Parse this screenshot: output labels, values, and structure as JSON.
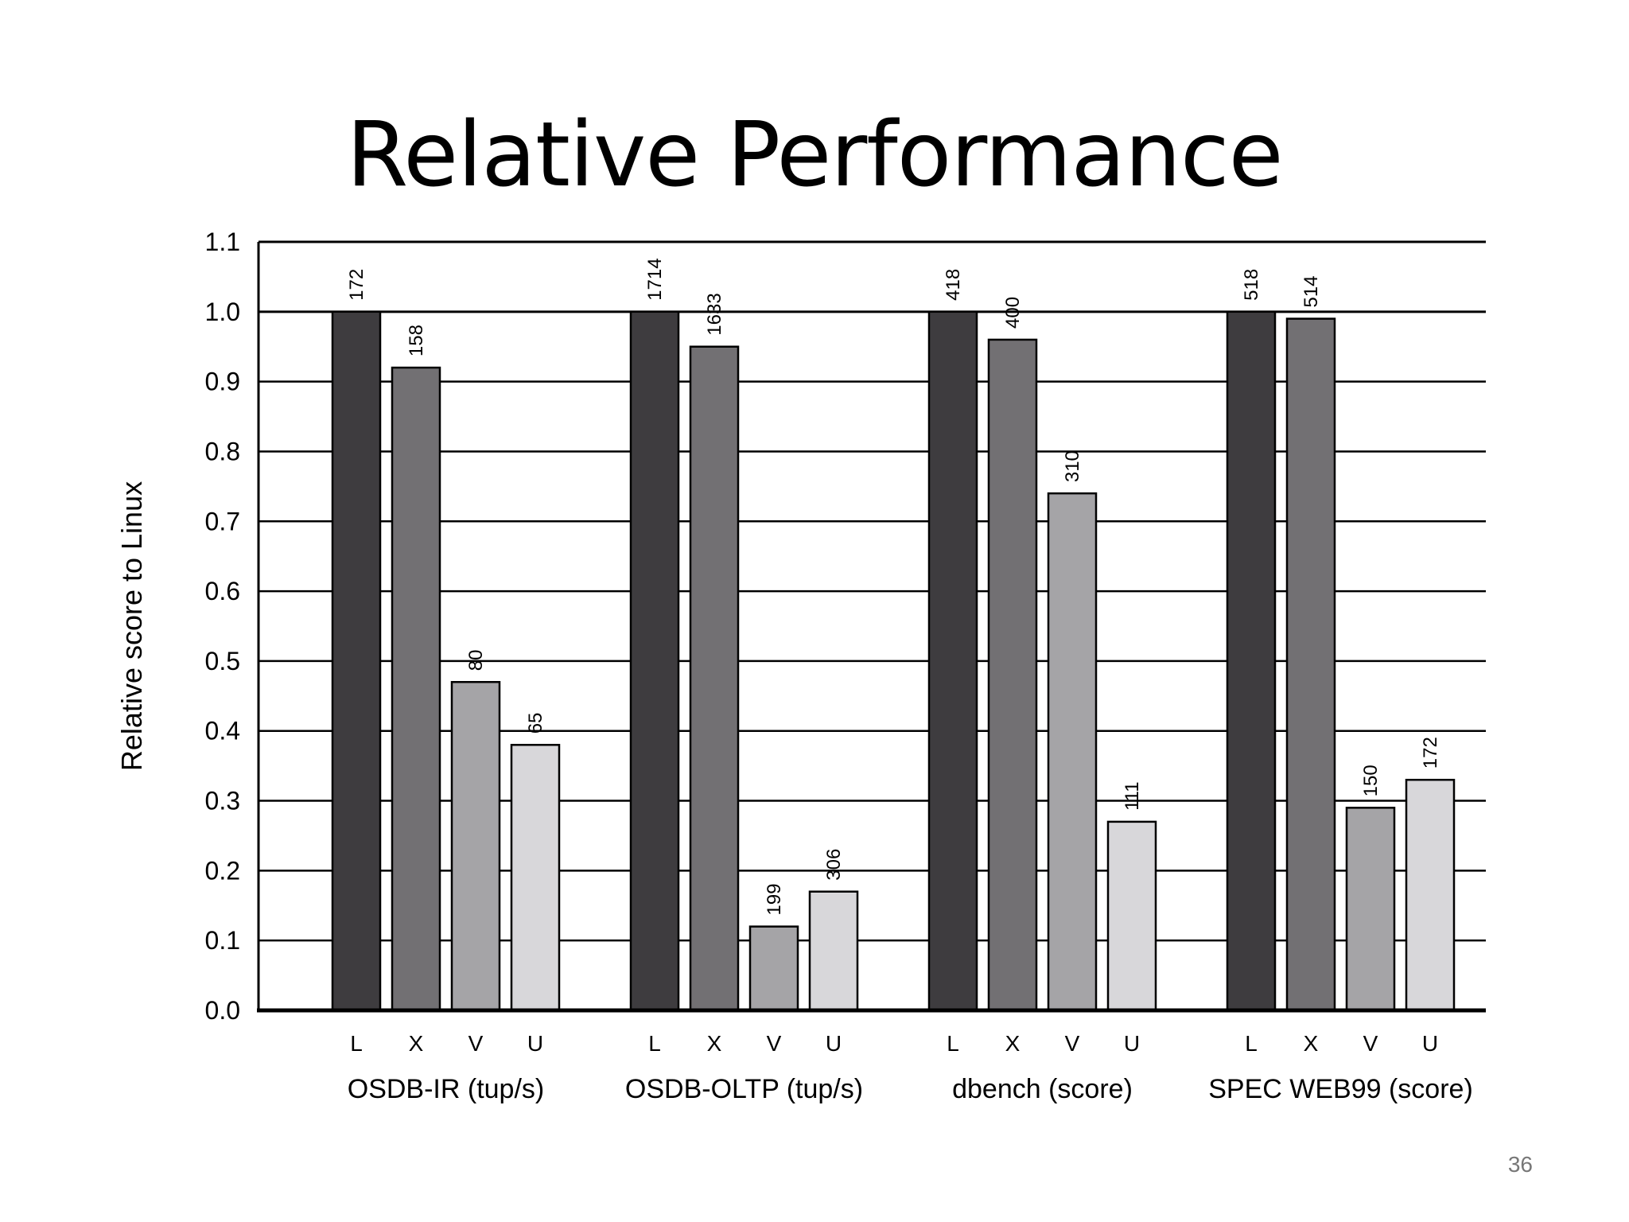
{
  "slide": {
    "title": "Relative Performance",
    "page_number": "36"
  },
  "chart_data": {
    "type": "bar",
    "title": "",
    "xlabel": "",
    "ylabel": "Relative score to Linux",
    "ylim": [
      0,
      1.1
    ],
    "yticks": [
      "0.0",
      "0.1",
      "0.2",
      "0.3",
      "0.4",
      "0.5",
      "0.6",
      "0.7",
      "0.8",
      "0.9",
      "1.0",
      "1.1"
    ],
    "grid": true,
    "legend": "none",
    "bar_colors": [
      "#3e3c3f",
      "#727073",
      "#a5a4a7",
      "#d8d7da"
    ],
    "groups": [
      {
        "label": "OSDB-IR (tup/s)",
        "bars": [
          {
            "label": "L",
            "value": 1.0,
            "annotation": "172"
          },
          {
            "label": "X",
            "value": 0.92,
            "annotation": "158"
          },
          {
            "label": "V",
            "value": 0.47,
            "annotation": "80"
          },
          {
            "label": "U",
            "value": 0.38,
            "annotation": "65"
          }
        ]
      },
      {
        "label": "OSDB-OLTP (tup/s)",
        "bars": [
          {
            "label": "L",
            "value": 1.0,
            "annotation": "1714"
          },
          {
            "label": "X",
            "value": 0.95,
            "annotation": "1633"
          },
          {
            "label": "V",
            "value": 0.12,
            "annotation": "199"
          },
          {
            "label": "U",
            "value": 0.17,
            "annotation": "306"
          }
        ]
      },
      {
        "label": "dbench (score)",
        "bars": [
          {
            "label": "L",
            "value": 1.0,
            "annotation": "418"
          },
          {
            "label": "X",
            "value": 0.96,
            "annotation": "400"
          },
          {
            "label": "V",
            "value": 0.74,
            "annotation": "310"
          },
          {
            "label": "U",
            "value": 0.27,
            "annotation": "111"
          }
        ]
      },
      {
        "label": "SPEC WEB99 (score)",
        "bars": [
          {
            "label": "L",
            "value": 1.0,
            "annotation": "518"
          },
          {
            "label": "X",
            "value": 0.99,
            "annotation": "514"
          },
          {
            "label": "V",
            "value": 0.29,
            "annotation": "150"
          },
          {
            "label": "U",
            "value": 0.33,
            "annotation": "172"
          }
        ]
      }
    ]
  }
}
